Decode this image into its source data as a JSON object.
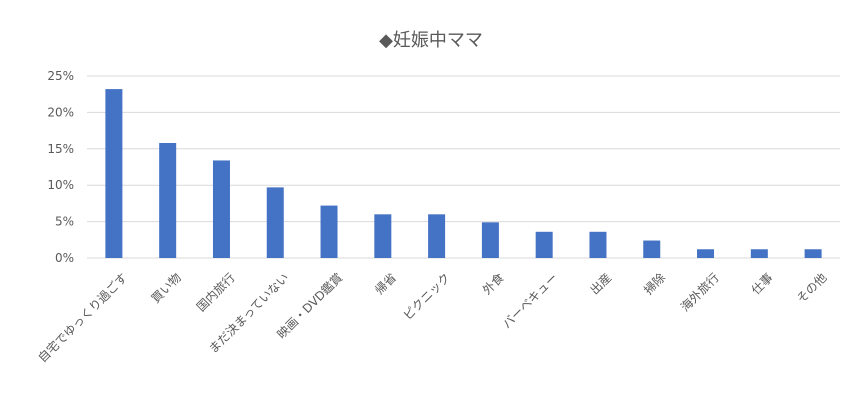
{
  "chart_data": {
    "type": "bar",
    "title": "◆妊娠中ママ",
    "categories": [
      "自宅でゆっくり過ごす",
      "買い物",
      "国内旅行",
      "まだ決まっていない",
      "映画・DVD鑑賞",
      "帰省",
      "ピクニック",
      "外食",
      "バーベキュー",
      "出産",
      "掃除",
      "海外旅行",
      "仕事",
      "その他"
    ],
    "values": [
      23.2,
      15.8,
      13.4,
      9.7,
      7.2,
      6.0,
      6.0,
      4.9,
      3.6,
      3.6,
      2.4,
      1.2,
      1.2,
      1.2
    ],
    "ylim": [
      0,
      25
    ],
    "yticks": [
      0,
      5,
      10,
      15,
      20,
      25
    ],
    "ytick_labels": [
      "0%",
      "5%",
      "10%",
      "15%",
      "20%",
      "25%"
    ],
    "xlabel": "",
    "ylabel": "",
    "grid": true,
    "legend": "none",
    "bar_color": "#4472C4",
    "grid_color": "#D9D9D9",
    "text_color": "#595959"
  }
}
